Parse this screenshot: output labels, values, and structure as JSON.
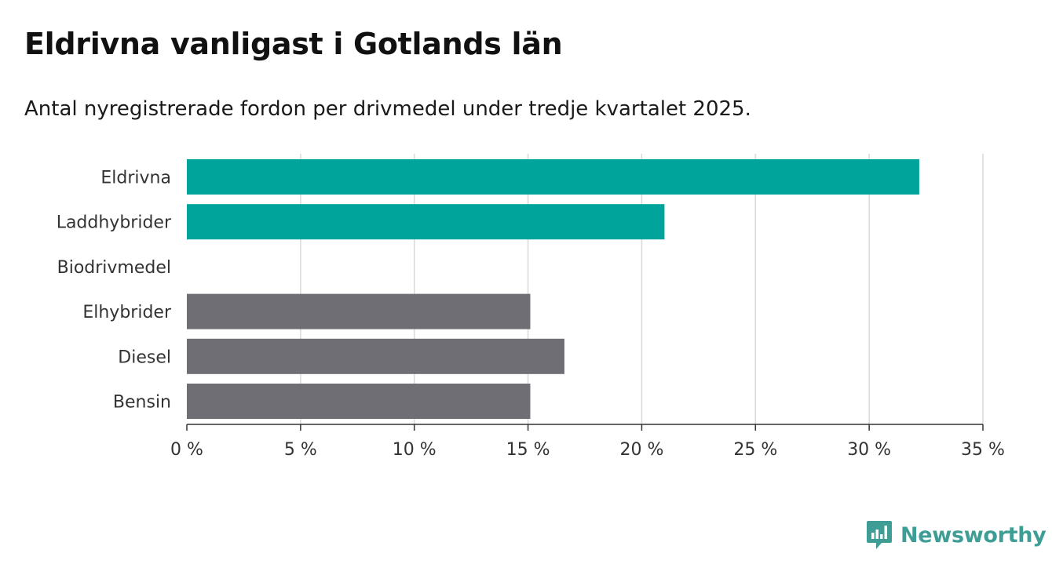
{
  "title": "Eldrivna vanligast i Gotlands län",
  "subtitle": "Antal nyregistrerade fordon per drivmedel under tredje kvartalet 2025.",
  "brand": {
    "name": "Newsworthy",
    "color": "#3e9e96"
  },
  "chart_data": {
    "type": "bar",
    "orientation": "horizontal",
    "categories": [
      "Eldrivna",
      "Laddhybrider",
      "Biodrivmedel",
      "Elhybrider",
      "Diesel",
      "Bensin"
    ],
    "values": [
      32.2,
      21.0,
      0,
      15.1,
      16.6,
      15.1
    ],
    "colors": [
      "#00a49a",
      "#00a49a",
      "#6f6e74",
      "#6f6e74",
      "#6f6e74",
      "#6f6e74"
    ],
    "xlim": [
      0,
      35
    ],
    "xticks": [
      0,
      5,
      10,
      15,
      20,
      25,
      30,
      35
    ],
    "xtick_labels": [
      "0 %",
      "5 %",
      "10 %",
      "15 %",
      "20 %",
      "25 %",
      "30 %",
      "35 %"
    ],
    "grid": true,
    "xlabel": "",
    "ylabel": ""
  }
}
